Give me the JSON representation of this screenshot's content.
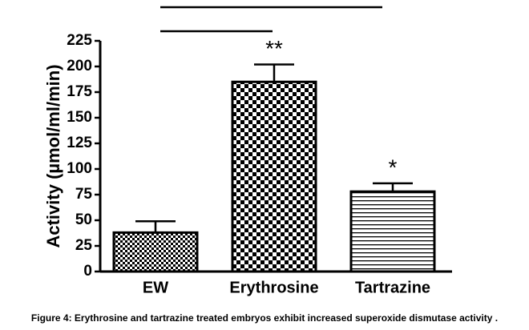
{
  "chart_data": {
    "type": "bar",
    "y_label": "Activity (µmol/ml/min)",
    "categories": [
      "EW",
      "Erythrosine",
      "Tartrazine"
    ],
    "values": [
      38,
      185,
      78
    ],
    "errors": [
      11,
      17,
      8
    ],
    "annotations": [
      null,
      "**",
      "*"
    ],
    "color": "#000000",
    "ylim": [
      0,
      225
    ],
    "yticks": [
      0,
      25,
      50,
      75,
      100,
      125,
      150,
      175,
      200,
      225
    ],
    "caption": "Figure 4:  Erythrosine and tartrazine treated embryos exhibit increased superoxide dismutase activity ."
  }
}
